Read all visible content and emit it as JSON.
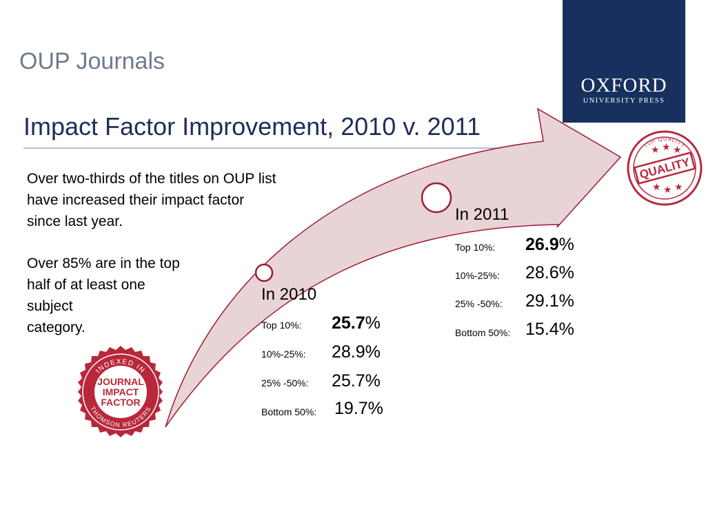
{
  "header": {
    "title": "OUP Journals"
  },
  "slide": {
    "title": "Impact Factor Improvement, 2010 v. 2011"
  },
  "logo": {
    "name": "OXFORD",
    "subtitle": "UNIVERSITY PRESS",
    "bg_color": "#17305e"
  },
  "paragraphs": [
    {
      "lines": [
        "Over two-thirds of the titles on OUP list",
        "have increased their impact factor",
        "since last year."
      ]
    },
    {
      "lines": [
        "Over 85% are in the top",
        "half of at least one",
        "subject",
        "category."
      ]
    }
  ],
  "badge_journal": {
    "top_arc": "INDEXED IN",
    "center": [
      "JOURNAL",
      "IMPACT",
      "FACTOR"
    ],
    "bottom_arc": "THOMSON REUTERS",
    "color": "#b8283a"
  },
  "badge_quality": {
    "label": "QUALITY",
    "ring_text": "TOP QUALITY",
    "color": "#b8283a"
  },
  "periods": [
    {
      "year_label": "In 2010",
      "rows": [
        {
          "label": "Top 10%:",
          "value_bold": "25.7",
          "value_rest": "%"
        },
        {
          "label": "10%-25%:",
          "value_bold": "",
          "value_rest": "28.9%"
        },
        {
          "label": "25% -50%:",
          "value_bold": "",
          "value_rest": "25.7%"
        },
        {
          "label": "Bottom 50%:",
          "value_bold": "",
          "value_rest": "19.7%"
        }
      ]
    },
    {
      "year_label": "In 2011",
      "rows": [
        {
          "label": "Top 10%:",
          "value_bold": "26.9",
          "value_rest": "%"
        },
        {
          "label": "10%-25%:",
          "value_bold": "",
          "value_rest": "28.6%"
        },
        {
          "label": "25% -50%:",
          "value_bold": "",
          "value_rest": "29.1%"
        },
        {
          "label": "Bottom 50%:",
          "value_bold": "",
          "value_rest": "15.4%"
        }
      ]
    }
  ],
  "colors": {
    "arrow_fill": "#e8d3d6",
    "arrow_stroke": "#9b1d33",
    "title": "#1f2d5a",
    "header": "#6f7a8c"
  }
}
